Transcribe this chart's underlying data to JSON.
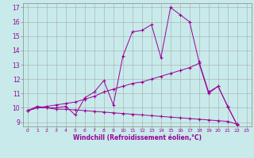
{
  "xlabel": "Windchill (Refroidissement éolien,°C)",
  "bg_color": "#c8eaea",
  "grid_color": "#aaaaaa",
  "line_color": "#990099",
  "line1": [
    9.8,
    10.1,
    10.0,
    10.0,
    10.1,
    9.5,
    10.7,
    11.1,
    11.9,
    10.2,
    13.6,
    15.3,
    15.4,
    15.8,
    13.5,
    17.0,
    16.5,
    16.0,
    13.2,
    11.1,
    11.5,
    10.1,
    8.8
  ],
  "line2": [
    9.8,
    10.0,
    10.1,
    10.2,
    10.3,
    10.4,
    10.6,
    10.8,
    11.1,
    11.3,
    11.5,
    11.7,
    11.8,
    12.0,
    12.2,
    12.4,
    12.6,
    12.8,
    13.1,
    11.0,
    11.5,
    10.1,
    8.8
  ],
  "line3": [
    9.8,
    10.0,
    10.0,
    9.9,
    9.9,
    9.85,
    9.8,
    9.75,
    9.7,
    9.65,
    9.6,
    9.55,
    9.5,
    9.45,
    9.4,
    9.35,
    9.3,
    9.25,
    9.2,
    9.15,
    9.1,
    9.05,
    8.85
  ],
  "xlim": [
    -0.5,
    23.5
  ],
  "ylim": [
    8.7,
    17.3
  ],
  "yticks": [
    9,
    10,
    11,
    12,
    13,
    14,
    15,
    16,
    17
  ],
  "xticks": [
    0,
    1,
    2,
    3,
    4,
    5,
    6,
    7,
    8,
    9,
    10,
    11,
    12,
    13,
    14,
    15,
    16,
    17,
    18,
    19,
    20,
    21,
    22,
    23
  ]
}
